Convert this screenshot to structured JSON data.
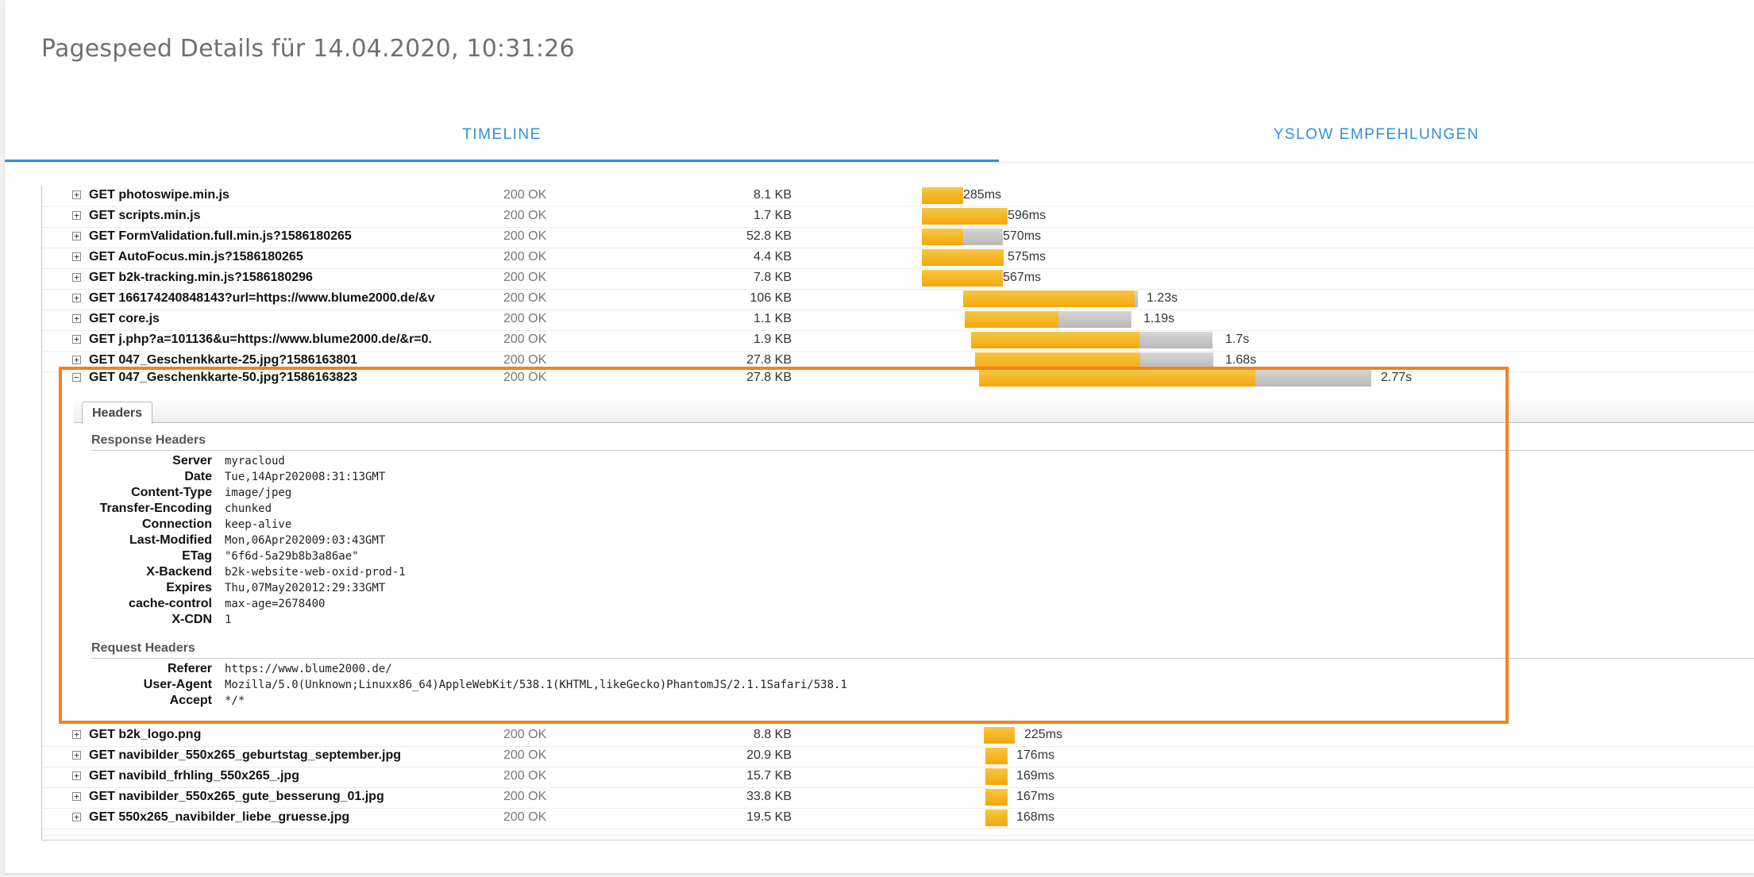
{
  "page": {
    "title": "Pagespeed Details für 14.04.2020, 10:31:26"
  },
  "tabs": {
    "timeline": "TIMELINE",
    "yslow": "YSLOW EMPFEHLUNGEN"
  },
  "requests_top": [
    {
      "url": "GET photoswipe.min.js",
      "status": "200 OK",
      "size": "8.1 KB",
      "duration": "285ms"
    },
    {
      "url": "GET scripts.min.js",
      "status": "200 OK",
      "size": "1.7 KB",
      "duration": "596ms"
    },
    {
      "url": "GET FormValidation.full.min.js?1586180265",
      "status": "200 OK",
      "size": "52.8 KB",
      "duration": "570ms"
    },
    {
      "url": "GET AutoFocus.min.js?1586180265",
      "status": "200 OK",
      "size": "4.4 KB",
      "duration": "575ms"
    },
    {
      "url": "GET b2k-tracking.min.js?1586180296",
      "status": "200 OK",
      "size": "7.8 KB",
      "duration": "567ms"
    },
    {
      "url": "GET 166174240848143?url=https://www.blume2000.de/&v",
      "status": "200 OK",
      "size": "106 KB",
      "duration": "1.23s"
    },
    {
      "url": "GET core.js",
      "status": "200 OK",
      "size": "1.1 KB",
      "duration": "1.19s"
    },
    {
      "url": "GET j.php?a=101136&u=https://www.blume2000.de/&r=0.",
      "status": "200 OK",
      "size": "1.9 KB",
      "duration": "1.7s"
    },
    {
      "url": "GET 047_Geschenkkarte-25.jpg?1586163801",
      "status": "200 OK",
      "size": "27.8 KB",
      "duration": "1.68s"
    }
  ],
  "expanded_request": {
    "url": "GET 047_Geschenkkarte-50.jpg?1586163823",
    "status": "200 OK",
    "size": "27.8 KB",
    "duration": "2.77s",
    "headers_tab": "Headers",
    "response_title": "Response Headers",
    "response_headers": [
      {
        "key": "Server",
        "value": "myracloud"
      },
      {
        "key": "Date",
        "value": "Tue,14Apr202008:31:13GMT"
      },
      {
        "key": "Content-Type",
        "value": "image/jpeg"
      },
      {
        "key": "Transfer-Encoding",
        "value": "chunked"
      },
      {
        "key": "Connection",
        "value": "keep-alive"
      },
      {
        "key": "Last-Modified",
        "value": "Mon,06Apr202009:03:43GMT"
      },
      {
        "key": "ETag",
        "value": "\"6f6d-5a29b8b3a86ae\""
      },
      {
        "key": "X-Backend",
        "value": "b2k-website-web-oxid-prod-1"
      },
      {
        "key": "Expires",
        "value": "Thu,07May202012:29:33GMT"
      },
      {
        "key": "cache-control",
        "value": "max-age=2678400"
      },
      {
        "key": "X-CDN",
        "value": "1"
      }
    ],
    "request_title": "Request Headers",
    "request_headers": [
      {
        "key": "Referer",
        "value": "https://www.blume2000.de/"
      },
      {
        "key": "User-Agent",
        "value": "Mozilla/5.0(Unknown;Linuxx86_64)AppleWebKit/538.1(KHTML,likeGecko)PhantomJS/2.1.1Safari/538.1"
      },
      {
        "key": "Accept",
        "value": "*/*"
      }
    ]
  },
  "requests_bottom": [
    {
      "url": "GET b2k_logo.png",
      "status": "200 OK",
      "size": "8.8 KB",
      "duration": "225ms"
    },
    {
      "url": "GET navibilder_550x265_geburtstag_september.jpg",
      "status": "200 OK",
      "size": "20.9 KB",
      "duration": "176ms"
    },
    {
      "url": "GET navibild_frhling_550x265_.jpg",
      "status": "200 OK",
      "size": "15.7 KB",
      "duration": "169ms"
    },
    {
      "url": "GET navibilder_550x265_gute_besserung_01.jpg",
      "status": "200 OK",
      "size": "33.8 KB",
      "duration": "167ms"
    },
    {
      "url": "GET 550x265_navibilder_liebe_gruesse.jpg",
      "status": "200 OK",
      "size": "19.5 KB",
      "duration": "168ms"
    }
  ],
  "colors": {
    "accent": "#2f8fd8",
    "highlight": "#f5821f",
    "bar_wait": "#f5b21e",
    "bar_receive": "#c4c4c4"
  },
  "icons": {
    "expand": "plus-box-icon",
    "collapse": "minus-box-icon"
  }
}
